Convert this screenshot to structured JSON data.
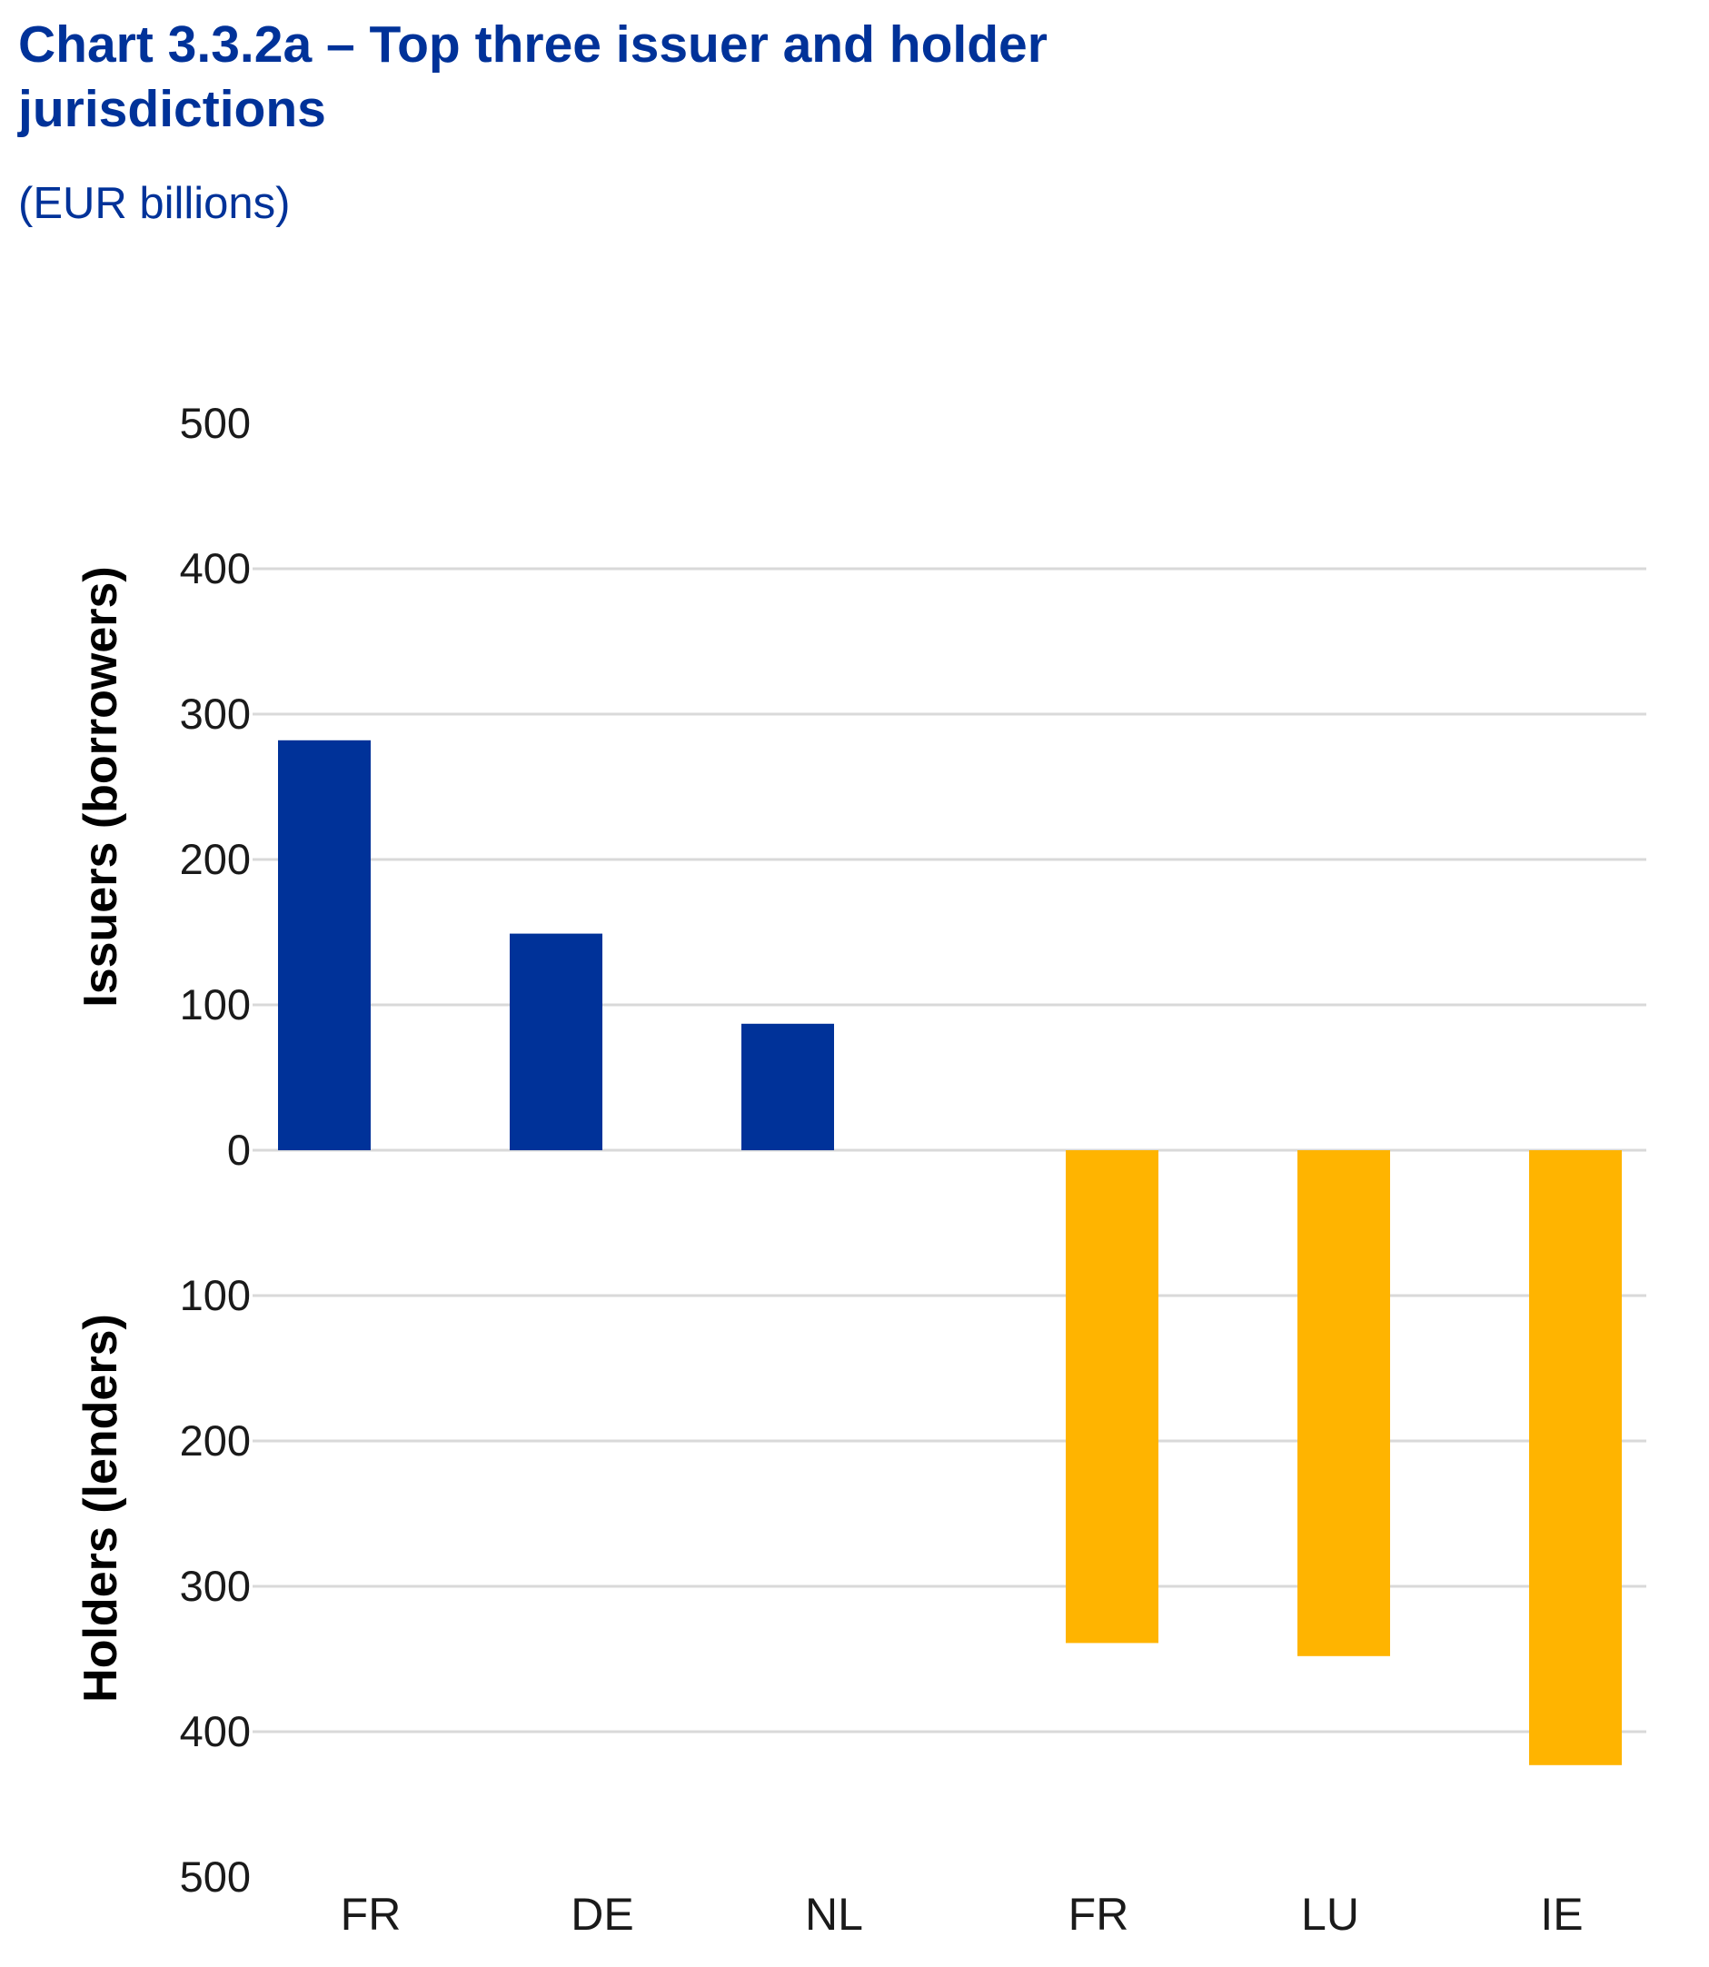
{
  "chart_data": {
    "type": "bar",
    "title": "Chart 3.3.2a – Top three issuer and holder jurisdictions",
    "subtitle": "(EUR billions)",
    "categories": [
      "FR",
      "DE",
      "NL",
      "FR",
      "LU",
      "IE"
    ],
    "series": [
      {
        "values": [
          282,
          149,
          87,
          null,
          null,
          null
        ],
        "color": "#003299",
        "direction": "up"
      },
      {
        "values": [
          null,
          null,
          null,
          339,
          348,
          423
        ],
        "color": "#FFB400",
        "direction": "down"
      }
    ],
    "ylabel_upper": "Issuers (borrowers)",
    "ylabel_lower": "Holders (lenders)",
    "ylim": [
      -500,
      500
    ],
    "yticks": [
      500,
      400,
      300,
      200,
      100,
      0,
      -100,
      -200,
      -300,
      -400,
      -500
    ],
    "ytick_labels": [
      "500",
      "400",
      "300",
      "200",
      "100",
      "0",
      "100",
      "200",
      "300",
      "400",
      "500"
    ],
    "grid": true,
    "grid_color": "#d9d9d9",
    "legend": "none"
  }
}
